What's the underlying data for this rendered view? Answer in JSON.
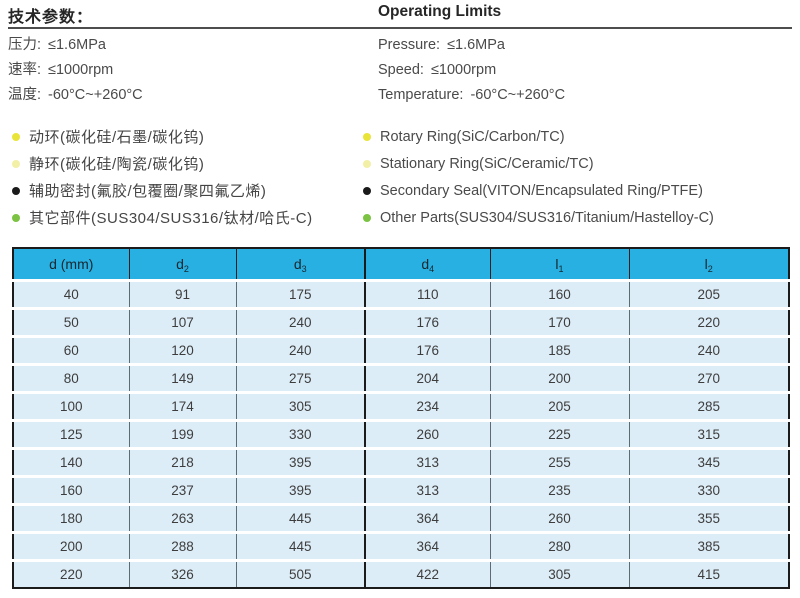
{
  "tech_params": {
    "title_cn": "技术参数：",
    "title_en": "Operating Limits",
    "specs_cn": [
      {
        "label": "压力:",
        "value": "≤1.6MPa"
      },
      {
        "label": "速率:",
        "value": "≤1000rpm"
      },
      {
        "label": "温度:",
        "value": "-60°C~+260°C"
      }
    ],
    "specs_en": [
      {
        "label": "Pressure:",
        "value": "≤1.6MPa"
      },
      {
        "label": "Speed:",
        "value": "≤1000rpm"
      },
      {
        "label": "Temperature:",
        "value": "-60°C~+260°C"
      }
    ]
  },
  "materials": [
    {
      "bullet_color": "#e9e43a",
      "cn": "动环(碳化硅/石墨/碳化钨)",
      "en": "Rotary Ring(SiC/Carbon/TC)"
    },
    {
      "bullet_color": "#f2f0a6",
      "cn": "静环(碳化硅/陶瓷/碳化钨)",
      "en": "Stationary Ring(SiC/Ceramic/TC)"
    },
    {
      "bullet_color": "#1a1a1a",
      "cn": "辅助密封(氟胶/包覆圈/聚四氟乙烯)",
      "en": "Secondary Seal(VITON/Encapsulated Ring/PTFE)"
    },
    {
      "bullet_color": "#7cc243",
      "cn": "其它部件(SUS304/SUS316/钛材/哈氏-C)",
      "en": "Other Parts(SUS304/SUS316/Titanium/Hastelloy-C)"
    }
  ],
  "dimension_table": {
    "header_bg": "#29b0e2",
    "row_bg": "#ddedf7",
    "headers": [
      {
        "base": "d (mm)",
        "sub": ""
      },
      {
        "base": "d",
        "sub": "2"
      },
      {
        "base": "d",
        "sub": "3"
      },
      {
        "base": "d",
        "sub": "4"
      },
      {
        "base": "l",
        "sub": "1"
      },
      {
        "base": "l",
        "sub": "2"
      }
    ],
    "rows": [
      [
        "40",
        "91",
        "175",
        "110",
        "160",
        "205"
      ],
      [
        "50",
        "107",
        "240",
        "176",
        "170",
        "220"
      ],
      [
        "60",
        "120",
        "240",
        "176",
        "185",
        "240"
      ],
      [
        "80",
        "149",
        "275",
        "204",
        "200",
        "270"
      ],
      [
        "100",
        "174",
        "305",
        "234",
        "205",
        "285"
      ],
      [
        "125",
        "199",
        "330",
        "260",
        "225",
        "315"
      ],
      [
        "140",
        "218",
        "395",
        "313",
        "255",
        "345"
      ],
      [
        "160",
        "237",
        "395",
        "313",
        "235",
        "330"
      ],
      [
        "180",
        "263",
        "445",
        "364",
        "260",
        "355"
      ],
      [
        "200",
        "288",
        "445",
        "364",
        "280",
        "385"
      ],
      [
        "220",
        "326",
        "505",
        "422",
        "305",
        "415"
      ]
    ]
  }
}
